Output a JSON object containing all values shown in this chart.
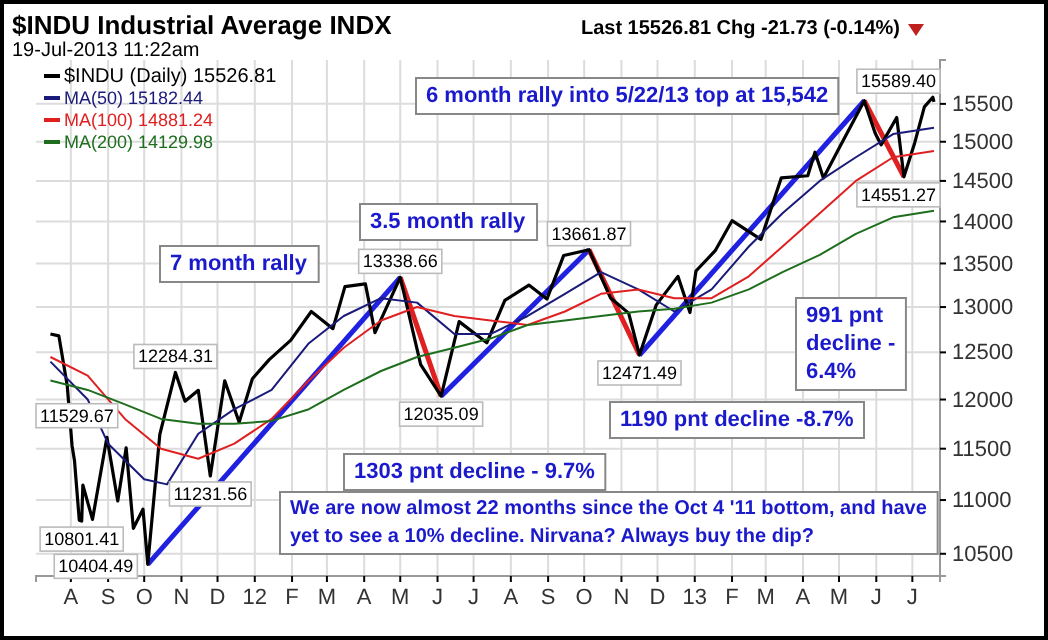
{
  "chart_data": {
    "type": "line",
    "title": "$INDU Industrial Average INDX",
    "subtitle": "19-Jul-2013 11:22am",
    "log": "y",
    "grid": true,
    "legend": "top left",
    "marker": "none",
    "line_style": "solid",
    "xlim": [
      "2011-07-03",
      "2013-07-24"
    ],
    "ylim": [
      10300,
      16100
    ],
    "xticks": [
      {
        "value": "2011-08-01",
        "label": "A"
      },
      {
        "value": "2011-09-01",
        "label": "S"
      },
      {
        "value": "2011-10-01",
        "label": "O"
      },
      {
        "value": "2011-11-01",
        "label": "N"
      },
      {
        "value": "2011-12-01",
        "label": "D"
      },
      {
        "value": "2012-01-01",
        "label": "12"
      },
      {
        "value": "2012-02-01",
        "label": "F"
      },
      {
        "value": "2012-03-01",
        "label": "M"
      },
      {
        "value": "2012-04-01",
        "label": "A"
      },
      {
        "value": "2012-05-01",
        "label": "M"
      },
      {
        "value": "2012-06-01",
        "label": "J"
      },
      {
        "value": "2012-07-01",
        "label": "J"
      },
      {
        "value": "2012-08-01",
        "label": "A"
      },
      {
        "value": "2012-09-01",
        "label": "S"
      },
      {
        "value": "2012-10-01",
        "label": "O"
      },
      {
        "value": "2012-11-01",
        "label": "N"
      },
      {
        "value": "2012-12-01",
        "label": "D"
      },
      {
        "value": "2013-01-01",
        "label": "13"
      },
      {
        "value": "2013-02-01",
        "label": "F"
      },
      {
        "value": "2013-03-01",
        "label": "M"
      },
      {
        "value": "2013-04-01",
        "label": "A"
      },
      {
        "value": "2013-05-01",
        "label": "M"
      },
      {
        "value": "2013-06-01",
        "label": "J"
      },
      {
        "value": "2013-07-01",
        "label": "J"
      }
    ],
    "yticks": [
      10500,
      11000,
      11500,
      12000,
      12500,
      13000,
      13500,
      14000,
      14500,
      15000,
      15500
    ],
    "series": [
      {
        "name": "$INDU (Daily) 15526.81",
        "color": "#000000",
        "x": [
          "2011-07-15",
          "2011-07-22",
          "2011-07-29",
          "2011-08-02",
          "2011-08-04",
          "2011-08-08",
          "2011-08-10",
          "2011-08-11",
          "2011-08-19",
          "2011-08-31",
          "2011-09-09",
          "2011-09-16",
          "2011-09-22",
          "2011-09-30",
          "2011-10-04",
          "2011-10-14",
          "2011-10-27",
          "2011-11-04",
          "2011-11-15",
          "2011-11-25",
          "2011-12-07",
          "2011-12-19",
          "2011-12-30",
          "2012-01-13",
          "2012-01-31",
          "2012-02-17",
          "2012-03-06",
          "2012-03-16",
          "2012-04-02",
          "2012-04-10",
          "2012-05-01",
          "2012-05-18",
          "2012-06-04",
          "2012-06-19",
          "2012-07-12",
          "2012-07-27",
          "2012-08-16",
          "2012-08-31",
          "2012-09-14",
          "2012-10-05",
          "2012-10-23",
          "2012-11-07",
          "2012-11-16",
          "2012-11-30",
          "2012-12-18",
          "2012-12-28",
          "2013-01-02",
          "2013-01-18",
          "2013-02-01",
          "2013-02-25",
          "2013-03-14",
          "2013-04-05",
          "2013-04-11",
          "2013-04-18",
          "2013-05-03",
          "2013-05-22",
          "2013-05-31",
          "2013-06-05",
          "2013-06-18",
          "2013-06-24",
          "2013-07-03",
          "2013-07-11",
          "2013-07-18",
          "2013-07-19"
        ],
        "values": [
          12700,
          12680,
          12143,
          11529.67,
          11384,
          10810,
          10801.41,
          11143,
          10817,
          11614,
          10992,
          11509,
          10734,
          10913,
          10404.49,
          11644,
          12284.31,
          11983,
          12096,
          11231.56,
          12196,
          11766,
          12218,
          12422,
          12633,
          12950,
          12759,
          13232,
          13264,
          12716,
          13338.66,
          12369,
          12035.09,
          12837,
          12604,
          13076,
          13250,
          13090,
          13594,
          13661.87,
          13102,
          12932,
          12471.49,
          13025,
          13350,
          12938,
          13412,
          13650,
          14009,
          13784,
          14539,
          14565,
          14865,
          14537,
          14973,
          15542,
          15115,
          14960,
          15318,
          14551.27,
          14988,
          15460,
          15589.4,
          15526.81
        ]
      },
      {
        "name": "MA(50) 15182.44",
        "color": "#1a1a7a",
        "x": [
          "2011-07-15",
          "2011-08-15",
          "2011-09-01",
          "2011-10-01",
          "2011-10-20",
          "2011-11-15",
          "2011-12-15",
          "2012-01-15",
          "2012-02-15",
          "2012-03-15",
          "2012-04-15",
          "2012-05-15",
          "2012-06-15",
          "2012-07-15",
          "2012-08-15",
          "2012-09-15",
          "2012-10-15",
          "2012-11-15",
          "2012-12-15",
          "2013-01-15",
          "2013-02-15",
          "2013-03-15",
          "2013-04-15",
          "2013-05-15",
          "2013-06-15",
          "2013-07-19"
        ],
        "values": [
          12400,
          12000,
          11550,
          11200,
          11150,
          11650,
          11900,
          12100,
          12600,
          12900,
          13100,
          13050,
          12700,
          12700,
          12900,
          13150,
          13400,
          13200,
          12950,
          13200,
          13700,
          14100,
          14500,
          14800,
          15100,
          15182.44
        ]
      },
      {
        "name": "MA(100) 14881.24",
        "color": "#e02020",
        "x": [
          "2011-07-15",
          "2011-08-15",
          "2011-09-15",
          "2011-10-15",
          "2011-11-15",
          "2011-12-15",
          "2012-01-15",
          "2012-02-15",
          "2012-03-15",
          "2012-04-15",
          "2012-05-15",
          "2012-06-15",
          "2012-07-15",
          "2012-08-15",
          "2012-09-15",
          "2012-10-15",
          "2012-11-15",
          "2012-12-15",
          "2013-01-15",
          "2013-02-15",
          "2013-03-15",
          "2013-04-15",
          "2013-05-15",
          "2013-06-15",
          "2013-07-19"
        ],
        "values": [
          12450,
          12250,
          11800,
          11500,
          11400,
          11550,
          11800,
          12200,
          12550,
          12850,
          13000,
          12900,
          12850,
          12800,
          12950,
          13150,
          13200,
          13100,
          13100,
          13350,
          13700,
          14100,
          14500,
          14800,
          14881.24
        ]
      },
      {
        "name": "MA(200) 14129.98",
        "color": "#1e6e1e",
        "x": [
          "2011-07-15",
          "2011-08-15",
          "2011-09-15",
          "2011-10-15",
          "2011-11-15",
          "2011-12-15",
          "2012-01-15",
          "2012-02-15",
          "2012-03-15",
          "2012-04-15",
          "2012-05-15",
          "2012-06-15",
          "2012-07-15",
          "2012-08-15",
          "2012-09-15",
          "2012-10-15",
          "2012-11-15",
          "2012-12-15",
          "2013-01-15",
          "2013-02-15",
          "2013-03-15",
          "2013-04-15",
          "2013-05-15",
          "2013-06-15",
          "2013-07-19"
        ],
        "values": [
          12200,
          12100,
          11950,
          11800,
          11750,
          11750,
          11780,
          11900,
          12100,
          12300,
          12450,
          12550,
          12650,
          12800,
          12850,
          12900,
          12950,
          12980,
          13050,
          13200,
          13400,
          13600,
          13850,
          14050,
          14129.98
        ]
      },
      {
        "type": "line",
        "color": "#2020e0",
        "x": [
          "2011-10-04",
          "2012-05-01"
        ],
        "values": [
          10404.49,
          13338.66
        ]
      },
      {
        "type": "line",
        "color": "#e02020",
        "x": [
          "2012-05-01",
          "2012-06-04"
        ],
        "values": [
          13338.66,
          12035.09
        ]
      },
      {
        "type": "line",
        "color": "#2020e0",
        "x": [
          "2012-06-04",
          "2012-10-05"
        ],
        "values": [
          12035.09,
          13661.87
        ]
      },
      {
        "type": "line",
        "color": "#e02020",
        "x": [
          "2012-10-05",
          "2012-11-16"
        ],
        "values": [
          13661.87,
          12471.49
        ]
      },
      {
        "type": "line",
        "color": "#2020e0",
        "x": [
          "2012-11-16",
          "2013-05-22"
        ],
        "values": [
          12471.49,
          15542
        ]
      },
      {
        "type": "line",
        "color": "#e02020",
        "x": [
          "2013-05-22",
          "2013-06-24"
        ],
        "values": [
          15542,
          14551.27
        ]
      }
    ],
    "annotations": [
      "Last 15526.81 Chg -21.73 (-0.14%)",
      "7 month rally",
      "3.5 month rally",
      "6 month rally into 5/22/13 top at 15,542",
      "1303 pnt decline - 9.7%",
      "1190 pnt decline -8.7%",
      "991 pnt decline - 6.4%",
      "We are now almost 22 months since the Oct 4 '11 bottom, and have yet to see a 10% decline. Nirvana? Always buy the dip?",
      {
        "text": "13338.66",
        "x": "2012-05-01",
        "y": 13338.66
      },
      {
        "text": "13661.87",
        "x": "2012-10-05",
        "y": 13661.87
      },
      {
        "text": "12035.09",
        "x": "2012-06-04",
        "y": 12035.09
      },
      {
        "text": "12471.49",
        "x": "2012-11-16",
        "y": 12471.49
      },
      {
        "text": "14551.27",
        "x": "2013-06-24",
        "y": 14551.27
      },
      {
        "text": "15589.40",
        "x": "2013-07-18",
        "y": 15589.4
      },
      {
        "text": "12284.31",
        "x": "2011-10-27",
        "y": 12284.31
      },
      {
        "text": "11529.67",
        "x": "2011-08-02",
        "y": 11529.67
      },
      {
        "text": "10801.41",
        "x": "2011-08-10",
        "y": 10801.41
      },
      {
        "text": "11231.56",
        "x": "2011-11-25",
        "y": 11231.56
      },
      {
        "text": "10404.49",
        "x": "2011-10-04",
        "y": 10404.49
      }
    ]
  }
}
